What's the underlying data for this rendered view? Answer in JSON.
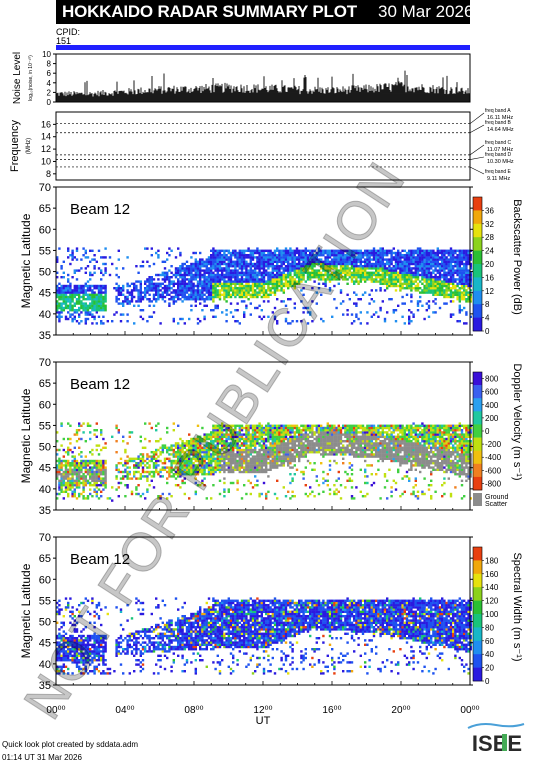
{
  "header": {
    "title": "HOKKAIDO RADAR SUMMARY PLOT",
    "date": "30 Mar 2026",
    "cpid_label": "CPID:",
    "cpid_value": "151"
  },
  "noise_panel": {
    "ylabel": "Noise Level",
    "ysub": "log₁₀(noise, in 10⁻¹⁰)",
    "ticks": [
      "0",
      "2",
      "4",
      "6",
      "8",
      "10"
    ]
  },
  "freq_panel": {
    "ylabel": "Frequency",
    "yunit": "(MHz)",
    "ticks": [
      "8",
      "10",
      "12",
      "14",
      "16"
    ],
    "bands": [
      {
        "name": "freq band A",
        "value": "16.11 MHz"
      },
      {
        "name": "freq band B",
        "value": "14.64 MHz"
      },
      {
        "name": "freq band C",
        "value": "11.07 MHz"
      },
      {
        "name": "freq band D",
        "value": "10.30 MHz"
      },
      {
        "name": "freq band E",
        "value": "9.11 MHz"
      }
    ]
  },
  "panels": [
    {
      "beam_label": "Beam 12",
      "ylabel": "Magnetic Latitude",
      "yticks": [
        "35",
        "40",
        "45",
        "50",
        "55",
        "60",
        "65",
        "70"
      ],
      "colorbar_label": "Backscatter Power (dB)",
      "colorbar_ticks": [
        "0",
        "4",
        "8",
        "12",
        "16",
        "20",
        "24",
        "28",
        "32",
        "36"
      ],
      "palette": "power"
    },
    {
      "beam_label": "Beam 12",
      "ylabel": "Magnetic Latitude",
      "yticks": [
        "35",
        "40",
        "45",
        "50",
        "55",
        "60",
        "65",
        "70"
      ],
      "colorbar_label": "Doppler Velocity (m s⁻¹)",
      "colorbar_ticks": [
        "800",
        "600",
        "400",
        "200",
        "0",
        "-200",
        "-400",
        "-600",
        "-800"
      ],
      "ground_scatter_label": "Ground",
      "ground_scatter_label2": "Scatter",
      "palette": "velocity"
    },
    {
      "beam_label": "Beam 12",
      "ylabel": "Magnetic Latitude",
      "yticks": [
        "35",
        "40",
        "45",
        "50",
        "55",
        "60",
        "65",
        "70"
      ],
      "colorbar_label": "Spectral Width (m s⁻¹)",
      "colorbar_ticks": [
        "0",
        "20",
        "40",
        "60",
        "80",
        "100",
        "120",
        "140",
        "160",
        "180"
      ],
      "palette": "width"
    }
  ],
  "x_axis": {
    "ticks": [
      "00⁰⁰",
      "04⁰⁰",
      "08⁰⁰",
      "12⁰⁰",
      "16⁰⁰",
      "20⁰⁰",
      "00⁰⁰"
    ],
    "label": "UT"
  },
  "watermark": "NOT FOR PUBLICATION",
  "footer": {
    "credit": "Quick look plot created by sddata.adm",
    "time": "01:14 UT 31 Mar 2026"
  },
  "logo_text": "ISEE",
  "colors": {
    "title_bg": "#000000",
    "cpid_bar": "#2020ff",
    "ground_scatter": "#8c8c8c",
    "watermark": "#000000"
  },
  "chart_data": [
    {
      "type": "area",
      "title": "",
      "ylabel": "Noise Level",
      "xlabel": "UT",
      "xlim": [
        0,
        24
      ],
      "ylim": [
        0,
        10
      ],
      "x": [
        0,
        2,
        4,
        6,
        8,
        10,
        12,
        14,
        16,
        18,
        20,
        22,
        24
      ],
      "values": [
        2.0,
        2.0,
        2.5,
        3.0,
        3.2,
        3.5,
        3.3,
        3.0,
        2.8,
        3.2,
        3.8,
        3.2,
        2.5
      ]
    },
    {
      "type": "line",
      "ylabel": "Frequency",
      "ylim": [
        7,
        18
      ],
      "xlim": [
        0,
        24
      ],
      "series": [
        {
          "name": "freq band A",
          "values": [
            16.11
          ]
        },
        {
          "name": "freq band B",
          "values": [
            14.64
          ]
        },
        {
          "name": "freq band C",
          "values": [
            11.07
          ]
        },
        {
          "name": "freq band D",
          "values": [
            10.3
          ]
        },
        {
          "name": "freq band E",
          "values": [
            9.11
          ]
        }
      ]
    },
    {
      "type": "heatmap",
      "title": "Beam 12",
      "xlabel": "UT",
      "ylabel": "Magnetic Latitude",
      "xlim": [
        0,
        24
      ],
      "ylim": [
        35,
        70
      ],
      "colorbar_range": [
        0,
        36
      ],
      "colorbar_label": "Backscatter Power (dB)"
    },
    {
      "type": "heatmap",
      "title": "Beam 12",
      "xlabel": "UT",
      "ylabel": "Magnetic Latitude",
      "xlim": [
        0,
        24
      ],
      "ylim": [
        35,
        70
      ],
      "colorbar_range": [
        -800,
        800
      ],
      "colorbar_label": "Doppler Velocity (m s⁻¹)"
    },
    {
      "type": "heatmap",
      "title": "Beam 12",
      "xlabel": "UT",
      "ylabel": "Magnetic Latitude",
      "xlim": [
        0,
        24
      ],
      "ylim": [
        35,
        70
      ],
      "colorbar_range": [
        0,
        180
      ],
      "colorbar_label": "Spectral Width (m s⁻¹)"
    }
  ]
}
